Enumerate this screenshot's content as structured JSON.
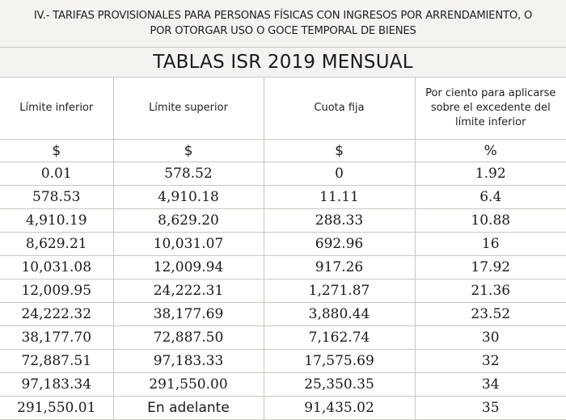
{
  "header": {
    "line1": "IV.- TARIFAS PROVISIONALES PARA PERSONAS FÍSICAS CON INGRESOS POR ARRENDAMIENTO, O",
    "line2": "POR OTORGAR USO O GOCE TEMPORAL DE BIENES"
  },
  "title": "TABLAS ISR 2019 MENSUAL",
  "table": {
    "columns": [
      "Límite inferior",
      "Límite superior",
      "Cuota fija",
      "Por ciento para aplicarse sobre el excedente del límite inferior"
    ],
    "units": [
      "$",
      "$",
      "$",
      "%"
    ],
    "rows": [
      [
        "0.01",
        "578.52",
        "0",
        "1.92"
      ],
      [
        "578.53",
        "4,910.18",
        "11.11",
        "6.4"
      ],
      [
        "4,910.19",
        "8,629.20",
        "288.33",
        "10.88"
      ],
      [
        "8,629.21",
        "10,031.07",
        "692.96",
        "16"
      ],
      [
        "10,031.08",
        "12,009.94",
        "917.26",
        "17.92"
      ],
      [
        "12,009.95",
        "24,222.31",
        "1,271.87",
        "21.36"
      ],
      [
        "24,222.32",
        "38,177.69",
        "3,880.44",
        "23.52"
      ],
      [
        "38,177.70",
        "72,887.50",
        "7,162.74",
        "30"
      ],
      [
        "72,887.51",
        "97,183.33",
        "17,575.69",
        "32"
      ],
      [
        "97,183.34",
        "291,550.00",
        "25,350.35",
        "34"
      ],
      [
        "291,550.01",
        "En adelante",
        "91,435.02",
        "35"
      ]
    ]
  }
}
